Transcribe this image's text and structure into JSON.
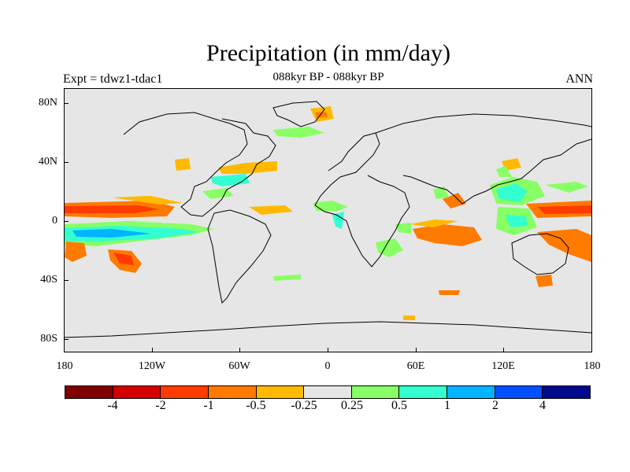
{
  "header": {
    "title": "Precipitation (in mm/day)",
    "subtitle": "088kyr BP - 088kyr BP",
    "left_label": "Expt = tdwz1-tdac1",
    "right_label": "ANN"
  },
  "map": {
    "background_color": "#e6e6e6",
    "coastline_color": "#000000",
    "lat_labels": [
      "80N",
      "40N",
      "0",
      "40S",
      "80S"
    ],
    "lon_labels": [
      "180",
      "120W",
      "60W",
      "0",
      "60E",
      "120E",
      "180"
    ]
  },
  "colorbar": {
    "colors": [
      "#800000",
      "#d40000",
      "#ff3b00",
      "#ff7a00",
      "#ffb900",
      "#e6e6e6",
      "#88ff66",
      "#33ffd0",
      "#00b4ff",
      "#0050ff",
      "#000a8c"
    ],
    "labels": [
      "-4",
      "-2",
      "-1",
      "-0.5",
      "-0.25",
      "0.25",
      "0.5",
      "1",
      "2",
      "4"
    ]
  },
  "anomaly_colors": {
    "dry_mild": "#ffb900",
    "dry_moderate": "#ff7a00",
    "dry_strong": "#ff3b00",
    "wet_mild": "#88ff66",
    "wet_moderate": "#33ffd0",
    "wet_strong": "#00b4ff"
  }
}
